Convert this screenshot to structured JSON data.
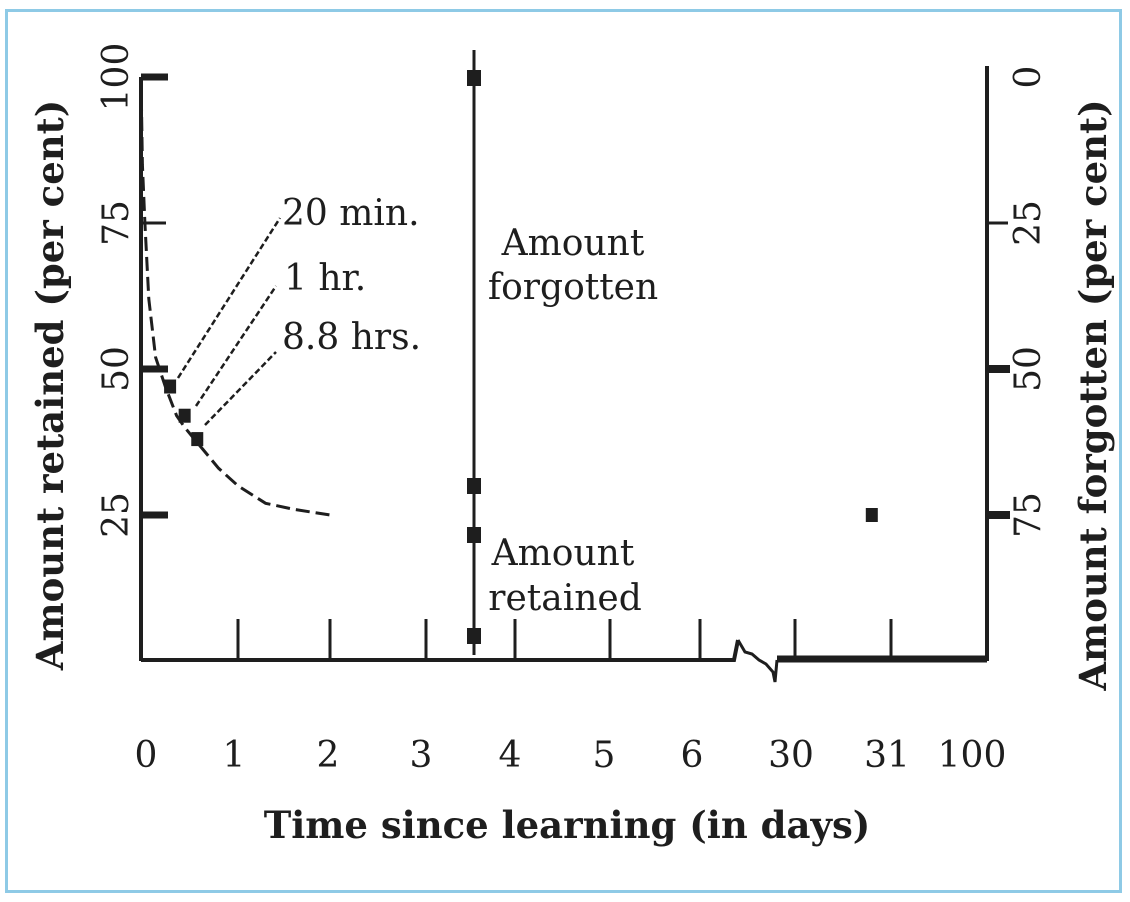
{
  "chart_data": {
    "type": "line",
    "title": "",
    "xlabel": "Time since learning (in days)",
    "ylabel": "Amount retained (per cent)",
    "y2label": "Amount forgotten (per cent)",
    "x_tick_labels": [
      "0",
      "1",
      "2",
      "3",
      "4",
      "5",
      "6",
      "30",
      "31",
      "100"
    ],
    "y_ticks": [
      25,
      50,
      75,
      100
    ],
    "y_tick_labels": [
      "25",
      "50",
      "75",
      "100"
    ],
    "y2_ticks": [
      0,
      25,
      50,
      75
    ],
    "y2_tick_labels": [
      "0",
      "25",
      "50",
      "75"
    ],
    "ylim": [
      0,
      100
    ],
    "y2lim": [
      100,
      0
    ],
    "axis_break": "between 6 and 30",
    "grid": false,
    "series": [
      {
        "x": [
          0,
          0.014,
          0.04,
          0.08,
          0.15,
          0.25,
          0.367,
          0.45,
          0.6,
          0.8,
          1.0,
          1.3,
          1.6,
          2.0
        ],
        "y": [
          100,
          85,
          75,
          62,
          52,
          47,
          42,
          40,
          37,
          33,
          30,
          27,
          26,
          25
        ]
      }
    ],
    "markers": [
      {
        "x": 0.3,
        "y": 47
      },
      {
        "x": 0.45,
        "y": 42
      },
      {
        "x": 0.58,
        "y": 38
      },
      {
        "x": 30.8,
        "y": 25
      }
    ],
    "annotations": [
      {
        "text": "20 min.",
        "x": 0.014,
        "y": 47
      },
      {
        "text": "1 hr.",
        "x": 0.042,
        "y": 42
      },
      {
        "text": "8.8 hrs.",
        "x": 0.367,
        "y": 38
      }
    ],
    "divider": {
      "x": 3.5,
      "top_label_lines": [
        "Amount",
        "forgotten"
      ],
      "bottom_label_lines": [
        "Amount",
        "retained"
      ]
    },
    "colors": {
      "ink": "#1e1e1e",
      "frame": "#8ecae6"
    }
  }
}
